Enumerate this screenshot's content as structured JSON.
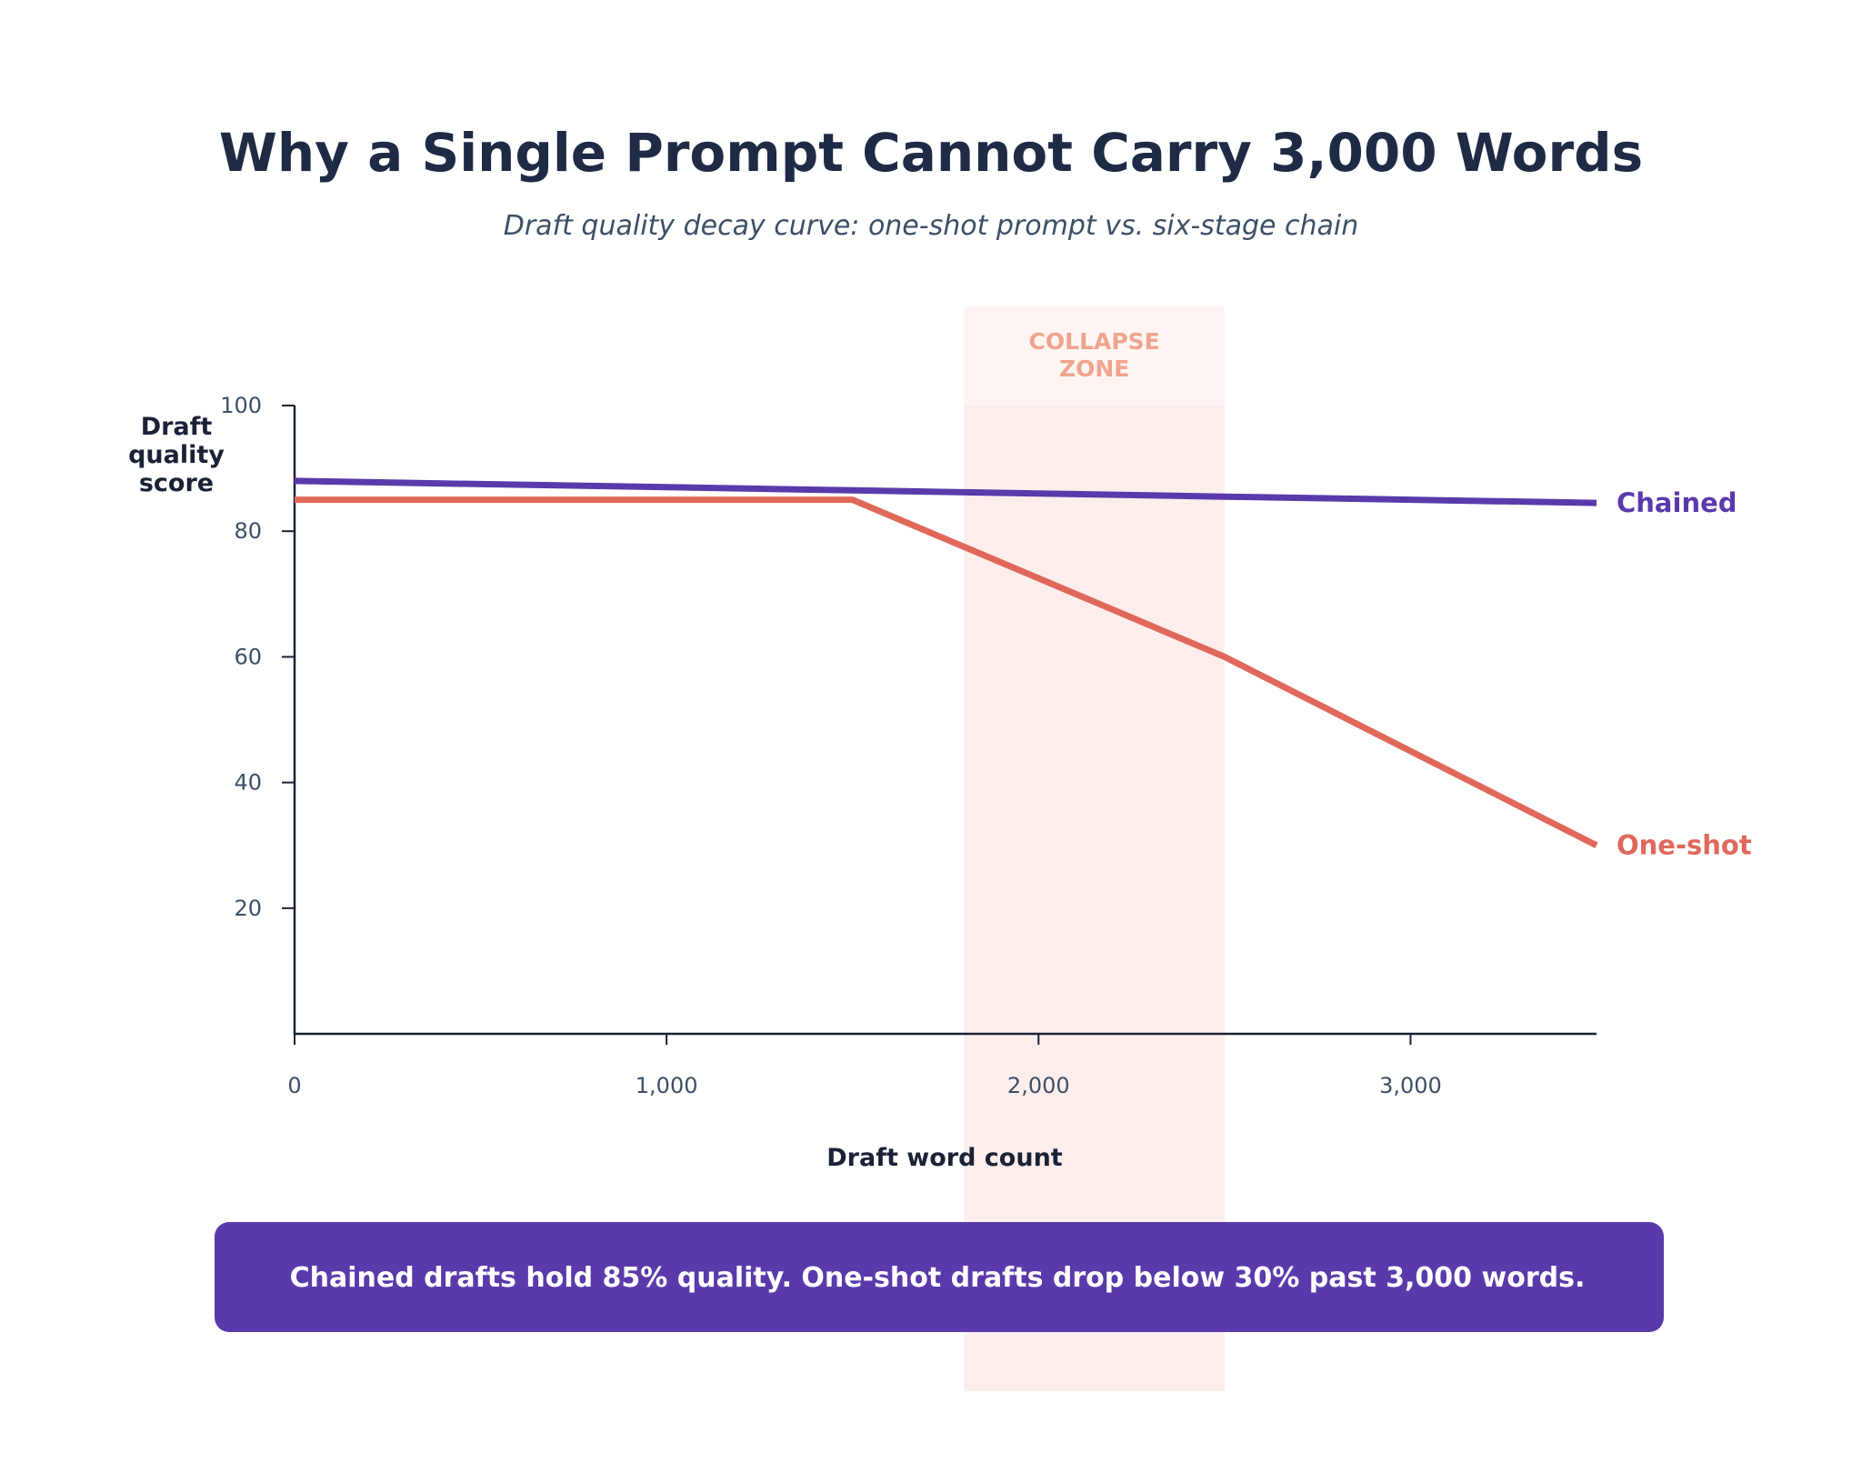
{
  "chart_data": {
    "type": "line",
    "title": "Why a Single Prompt Cannot Carry 3,000 Words",
    "subtitle": "Draft quality decay curve: one-shot prompt vs. six-stage chain",
    "xlabel": "Draft word count",
    "ylabel": [
      "Draft",
      "quality",
      "score"
    ],
    "xlim": [
      0,
      3500
    ],
    "ylim": [
      0,
      100
    ],
    "x_ticks": [
      {
        "value": 0,
        "label": "0"
      },
      {
        "value": 1000,
        "label": "1,000"
      },
      {
        "value": 2000,
        "label": "2,000"
      },
      {
        "value": 3000,
        "label": "3,000"
      }
    ],
    "y_ticks": [
      {
        "value": 20,
        "label": "20"
      },
      {
        "value": 40,
        "label": "40"
      },
      {
        "value": 60,
        "label": "60"
      },
      {
        "value": 80,
        "label": "80"
      },
      {
        "value": 100,
        "label": "100"
      }
    ],
    "grid": false,
    "legend": "direct labels at line ends",
    "series": [
      {
        "name": "Chained",
        "color": "#5a3aab",
        "points": [
          [
            0,
            88
          ],
          [
            500,
            87.5
          ],
          [
            1000,
            87
          ],
          [
            1500,
            86.5
          ],
          [
            2000,
            86
          ],
          [
            2500,
            85.5
          ],
          [
            3000,
            85
          ],
          [
            3500,
            84.5
          ]
        ]
      },
      {
        "name": "One-shot",
        "color": "#e0685a",
        "points": [
          [
            0,
            85
          ],
          [
            1500,
            85
          ],
          [
            2500,
            60
          ],
          [
            3500,
            30
          ]
        ]
      }
    ],
    "annotations": [
      {
        "type": "band",
        "x_start": 1800,
        "x_end": 2500,
        "label": [
          "COLLAPSE",
          "ZONE"
        ],
        "color": "#fdecea",
        "label_color": "#f0a48e"
      }
    ]
  },
  "callout": {
    "text": "Chained drafts hold 85% quality. One-shot drafts drop below 30% past 3,000 words.",
    "background": "#5a3aab"
  }
}
